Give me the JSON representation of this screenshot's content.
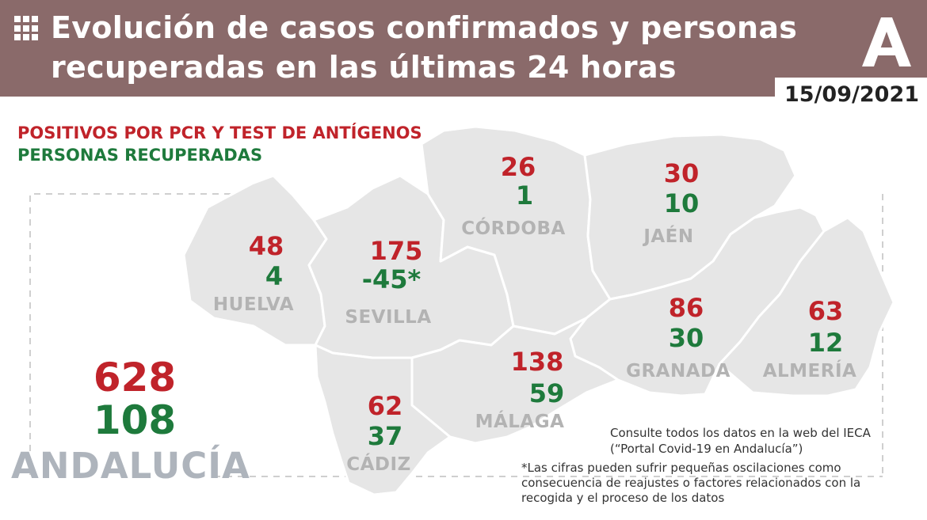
{
  "header": {
    "title_line1": "Evolución de casos confirmados y personas",
    "title_line2": "recuperadas en las últimas 24 horas",
    "date": "15/09/2021",
    "logo_icon": "junta-andalucia-logo-icon",
    "menu_icon": "grid-icon"
  },
  "legend": {
    "positives": "POSITIVOS POR PCR Y TEST DE ANTÍGENOS",
    "recovered": "PERSONAS RECUPERADAS"
  },
  "colors": {
    "header_bg": "#8a6a6a",
    "positives": "#c0232a",
    "recovered": "#1e7a3c",
    "map_fill": "#e6e6e6",
    "province_label": "#b3b3b3",
    "region_label": "#aeb4bc"
  },
  "provinces": [
    {
      "name": "HUELVA",
      "positives": "48",
      "recovered": "4"
    },
    {
      "name": "SEVILLA",
      "positives": "175",
      "recovered": "-45*"
    },
    {
      "name": "CÓRDOBA",
      "positives": "26",
      "recovered": "1"
    },
    {
      "name": "JAÉN",
      "positives": "30",
      "recovered": "10"
    },
    {
      "name": "GRANADA",
      "positives": "86",
      "recovered": "30"
    },
    {
      "name": "ALMERÍA",
      "positives": "63",
      "recovered": "12"
    },
    {
      "name": "MÁLAGA",
      "positives": "138",
      "recovered": "59"
    },
    {
      "name": "CÁDIZ",
      "positives": "62",
      "recovered": "37"
    }
  ],
  "total": {
    "name": "ANDALUCÍA",
    "positives": "628",
    "recovered": "108"
  },
  "notes": {
    "source": "Consulte todos los datos en la web del IECA (“Portal Covid-19 en Andalucía”)",
    "disclaimer": "*Las cifras pueden sufrir pequeñas oscilaciones como consecuencia de reajustes o factores relacionados con la recogida y el proceso de los datos"
  }
}
